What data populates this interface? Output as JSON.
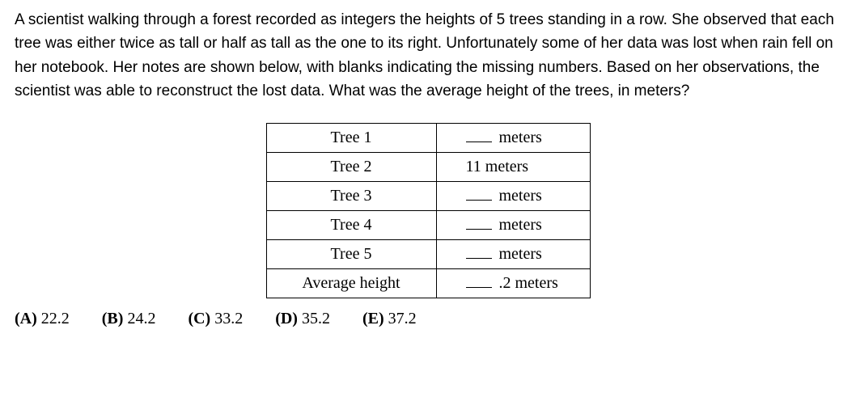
{
  "question": "A scientist walking through a forest recorded as integers the heights of 5 trees standing in a row. She observed that each tree was either twice as tall or half as tall as the one to its right. Unfortunately some of her data was lost when rain fell on her notebook. Her notes are shown below, with blanks indicating the missing numbers. Based on her observations, the scientist was able to reconstruct the lost data. What was the average height of the trees, in meters?",
  "table": {
    "rows": [
      {
        "label": "Tree 1",
        "value_prefix_blank": true,
        "value_text": " meters"
      },
      {
        "label": "Tree 2",
        "value_prefix_blank": false,
        "value_text": "11 meters"
      },
      {
        "label": "Tree 3",
        "value_prefix_blank": true,
        "value_text": " meters"
      },
      {
        "label": "Tree 4",
        "value_prefix_blank": true,
        "value_text": " meters"
      },
      {
        "label": "Tree 5",
        "value_prefix_blank": true,
        "value_text": " meters"
      },
      {
        "label": "Average height",
        "value_prefix_blank": true,
        "value_text": " .2 meters"
      }
    ]
  },
  "choices": [
    {
      "letter": "(A)",
      "text": "22.2"
    },
    {
      "letter": "(B)",
      "text": "24.2"
    },
    {
      "letter": "(C)",
      "text": "33.2"
    },
    {
      "letter": "(D)",
      "text": "35.2"
    },
    {
      "letter": "(E)",
      "text": "37.2"
    }
  ]
}
